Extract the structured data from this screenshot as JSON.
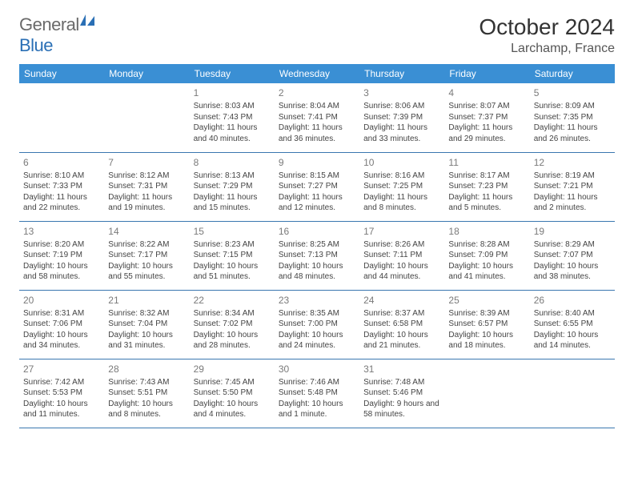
{
  "logo": {
    "general": "General",
    "blue": "Blue"
  },
  "header": {
    "month_title": "October 2024",
    "location": "Larchamp, France"
  },
  "weekdays": [
    "Sunday",
    "Monday",
    "Tuesday",
    "Wednesday",
    "Thursday",
    "Friday",
    "Saturday"
  ],
  "colors": {
    "header_bg": "#3a8fd4",
    "header_fg": "#ffffff",
    "row_border": "#3a77b0",
    "daynum": "#7a7a7a",
    "text": "#444444",
    "logo_general": "#6a6a6a",
    "logo_blue": "#2a6fb5"
  },
  "typography": {
    "month_title_fontsize": 28,
    "location_fontsize": 16,
    "weekday_fontsize": 12,
    "daynum_fontsize": 12,
    "cell_fontsize": 10
  },
  "calendar": {
    "type": "table",
    "columns": 7,
    "rows": 5,
    "leading_blanks": 2,
    "days": [
      {
        "n": "1",
        "sunrise": "Sunrise: 8:03 AM",
        "sunset": "Sunset: 7:43 PM",
        "daylight": "Daylight: 11 hours and 40 minutes."
      },
      {
        "n": "2",
        "sunrise": "Sunrise: 8:04 AM",
        "sunset": "Sunset: 7:41 PM",
        "daylight": "Daylight: 11 hours and 36 minutes."
      },
      {
        "n": "3",
        "sunrise": "Sunrise: 8:06 AM",
        "sunset": "Sunset: 7:39 PM",
        "daylight": "Daylight: 11 hours and 33 minutes."
      },
      {
        "n": "4",
        "sunrise": "Sunrise: 8:07 AM",
        "sunset": "Sunset: 7:37 PM",
        "daylight": "Daylight: 11 hours and 29 minutes."
      },
      {
        "n": "5",
        "sunrise": "Sunrise: 8:09 AM",
        "sunset": "Sunset: 7:35 PM",
        "daylight": "Daylight: 11 hours and 26 minutes."
      },
      {
        "n": "6",
        "sunrise": "Sunrise: 8:10 AM",
        "sunset": "Sunset: 7:33 PM",
        "daylight": "Daylight: 11 hours and 22 minutes."
      },
      {
        "n": "7",
        "sunrise": "Sunrise: 8:12 AM",
        "sunset": "Sunset: 7:31 PM",
        "daylight": "Daylight: 11 hours and 19 minutes."
      },
      {
        "n": "8",
        "sunrise": "Sunrise: 8:13 AM",
        "sunset": "Sunset: 7:29 PM",
        "daylight": "Daylight: 11 hours and 15 minutes."
      },
      {
        "n": "9",
        "sunrise": "Sunrise: 8:15 AM",
        "sunset": "Sunset: 7:27 PM",
        "daylight": "Daylight: 11 hours and 12 minutes."
      },
      {
        "n": "10",
        "sunrise": "Sunrise: 8:16 AM",
        "sunset": "Sunset: 7:25 PM",
        "daylight": "Daylight: 11 hours and 8 minutes."
      },
      {
        "n": "11",
        "sunrise": "Sunrise: 8:17 AM",
        "sunset": "Sunset: 7:23 PM",
        "daylight": "Daylight: 11 hours and 5 minutes."
      },
      {
        "n": "12",
        "sunrise": "Sunrise: 8:19 AM",
        "sunset": "Sunset: 7:21 PM",
        "daylight": "Daylight: 11 hours and 2 minutes."
      },
      {
        "n": "13",
        "sunrise": "Sunrise: 8:20 AM",
        "sunset": "Sunset: 7:19 PM",
        "daylight": "Daylight: 10 hours and 58 minutes."
      },
      {
        "n": "14",
        "sunrise": "Sunrise: 8:22 AM",
        "sunset": "Sunset: 7:17 PM",
        "daylight": "Daylight: 10 hours and 55 minutes."
      },
      {
        "n": "15",
        "sunrise": "Sunrise: 8:23 AM",
        "sunset": "Sunset: 7:15 PM",
        "daylight": "Daylight: 10 hours and 51 minutes."
      },
      {
        "n": "16",
        "sunrise": "Sunrise: 8:25 AM",
        "sunset": "Sunset: 7:13 PM",
        "daylight": "Daylight: 10 hours and 48 minutes."
      },
      {
        "n": "17",
        "sunrise": "Sunrise: 8:26 AM",
        "sunset": "Sunset: 7:11 PM",
        "daylight": "Daylight: 10 hours and 44 minutes."
      },
      {
        "n": "18",
        "sunrise": "Sunrise: 8:28 AM",
        "sunset": "Sunset: 7:09 PM",
        "daylight": "Daylight: 10 hours and 41 minutes."
      },
      {
        "n": "19",
        "sunrise": "Sunrise: 8:29 AM",
        "sunset": "Sunset: 7:07 PM",
        "daylight": "Daylight: 10 hours and 38 minutes."
      },
      {
        "n": "20",
        "sunrise": "Sunrise: 8:31 AM",
        "sunset": "Sunset: 7:06 PM",
        "daylight": "Daylight: 10 hours and 34 minutes."
      },
      {
        "n": "21",
        "sunrise": "Sunrise: 8:32 AM",
        "sunset": "Sunset: 7:04 PM",
        "daylight": "Daylight: 10 hours and 31 minutes."
      },
      {
        "n": "22",
        "sunrise": "Sunrise: 8:34 AM",
        "sunset": "Sunset: 7:02 PM",
        "daylight": "Daylight: 10 hours and 28 minutes."
      },
      {
        "n": "23",
        "sunrise": "Sunrise: 8:35 AM",
        "sunset": "Sunset: 7:00 PM",
        "daylight": "Daylight: 10 hours and 24 minutes."
      },
      {
        "n": "24",
        "sunrise": "Sunrise: 8:37 AM",
        "sunset": "Sunset: 6:58 PM",
        "daylight": "Daylight: 10 hours and 21 minutes."
      },
      {
        "n": "25",
        "sunrise": "Sunrise: 8:39 AM",
        "sunset": "Sunset: 6:57 PM",
        "daylight": "Daylight: 10 hours and 18 minutes."
      },
      {
        "n": "26",
        "sunrise": "Sunrise: 8:40 AM",
        "sunset": "Sunset: 6:55 PM",
        "daylight": "Daylight: 10 hours and 14 minutes."
      },
      {
        "n": "27",
        "sunrise": "Sunrise: 7:42 AM",
        "sunset": "Sunset: 5:53 PM",
        "daylight": "Daylight: 10 hours and 11 minutes."
      },
      {
        "n": "28",
        "sunrise": "Sunrise: 7:43 AM",
        "sunset": "Sunset: 5:51 PM",
        "daylight": "Daylight: 10 hours and 8 minutes."
      },
      {
        "n": "29",
        "sunrise": "Sunrise: 7:45 AM",
        "sunset": "Sunset: 5:50 PM",
        "daylight": "Daylight: 10 hours and 4 minutes."
      },
      {
        "n": "30",
        "sunrise": "Sunrise: 7:46 AM",
        "sunset": "Sunset: 5:48 PM",
        "daylight": "Daylight: 10 hours and 1 minute."
      },
      {
        "n": "31",
        "sunrise": "Sunrise: 7:48 AM",
        "sunset": "Sunset: 5:46 PM",
        "daylight": "Daylight: 9 hours and 58 minutes."
      }
    ]
  }
}
